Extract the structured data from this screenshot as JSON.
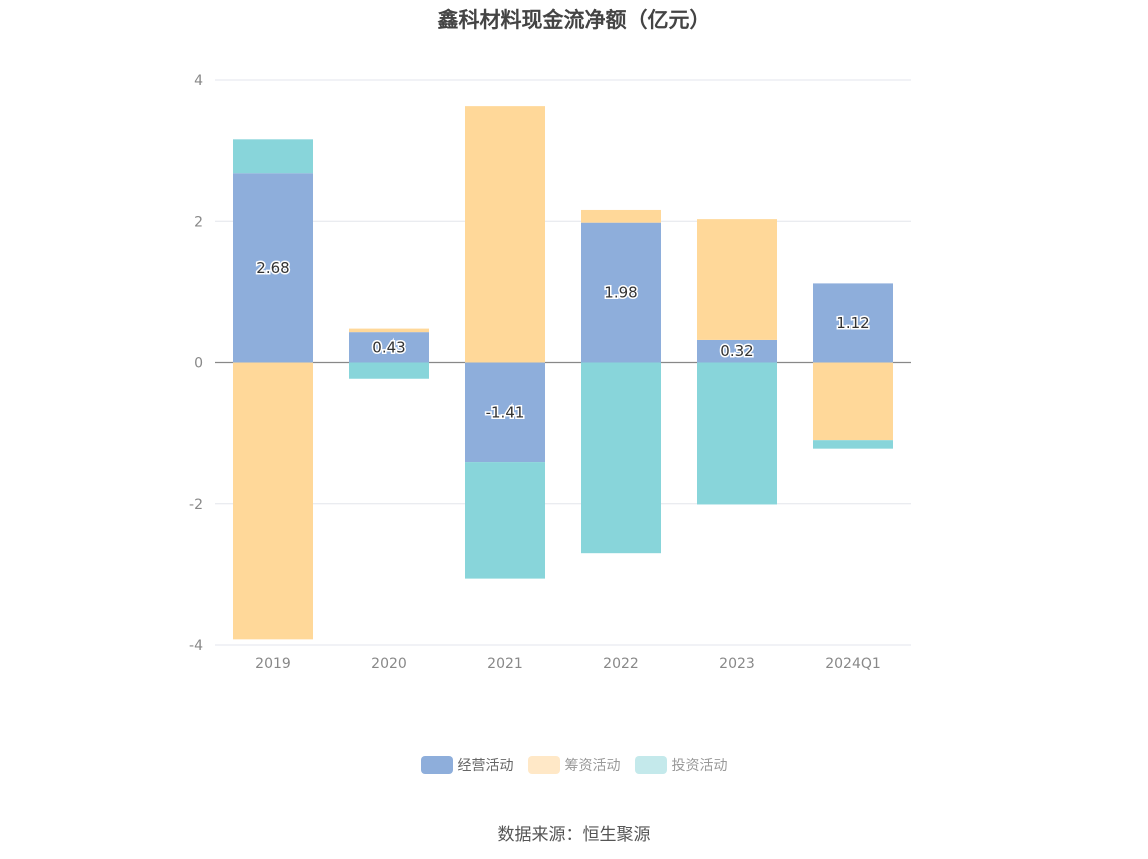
{
  "title": "鑫科材料现金流净额（亿元）",
  "source": "数据来源：恒生聚源",
  "chart_data": {
    "type": "bar",
    "stacked": true,
    "categories": [
      "2019",
      "2020",
      "2021",
      "2022",
      "2023",
      "2024Q1"
    ],
    "series": [
      {
        "name": "经营活动",
        "color": "#8eaedb",
        "values": [
          2.68,
          0.43,
          -1.41,
          1.98,
          0.32,
          1.12
        ]
      },
      {
        "name": "筹资活动",
        "color": "#ffd899",
        "values": [
          -3.92,
          0.05,
          3.63,
          0.18,
          1.71,
          -1.1
        ]
      },
      {
        "name": "投资活动",
        "color": "#88d5da",
        "values": [
          0.48,
          -0.23,
          -1.65,
          -2.7,
          -2.01,
          -0.12
        ]
      }
    ],
    "data_labels_series": "经营活动",
    "yticks": [
      4,
      2,
      0,
      -2,
      -4
    ],
    "ylim": [
      -4,
      4
    ],
    "grid": true,
    "legend_position": "bottom"
  },
  "legend": [
    {
      "label": "经营活动",
      "color": "#8eaedb"
    },
    {
      "label": "筹资活动",
      "color": "#ffe8c7"
    },
    {
      "label": "投资活动",
      "color": "#c4e9eb"
    }
  ]
}
